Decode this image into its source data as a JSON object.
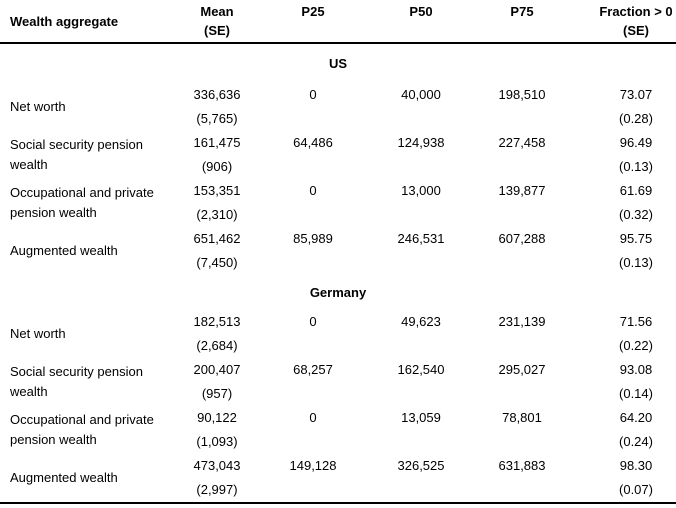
{
  "colors": {
    "background": "#ffffff",
    "text": "#000000",
    "rule": "#000000"
  },
  "table": {
    "header": {
      "wealth_aggregate": "Wealth aggregate",
      "mean": "Mean",
      "mean_se": "(SE)",
      "p25": "P25",
      "p50": "P50",
      "p75": "P75",
      "fraction": "Fraction > 0",
      "fraction_se": "(SE)"
    },
    "sections": [
      {
        "title": "US",
        "rows": [
          {
            "label": "Net worth",
            "mean": "336,636",
            "mean_se": "(5,765)",
            "p25": "0",
            "p50": "40,000",
            "p75": "198,510",
            "fraction": "73.07",
            "fraction_se": "(0.28)"
          },
          {
            "label": "Social security pension wealth",
            "mean": "161,475",
            "mean_se": "(906)",
            "p25": "64,486",
            "p50": "124,938",
            "p75": "227,458",
            "fraction": "96.49",
            "fraction_se": "(0.13)"
          },
          {
            "label": "Occupational and private pension wealth",
            "mean": "153,351",
            "mean_se": "(2,310)",
            "p25": "0",
            "p50": "13,000",
            "p75": "139,877",
            "fraction": "61.69",
            "fraction_se": "(0.32)"
          },
          {
            "label": "Augmented wealth",
            "mean": "651,462",
            "mean_se": "(7,450)",
            "p25": "85,989",
            "p50": "246,531",
            "p75": "607,288",
            "fraction": "95.75",
            "fraction_se": "(0.13)"
          }
        ]
      },
      {
        "title": "Germany",
        "rows": [
          {
            "label": "Net worth",
            "mean": "182,513",
            "mean_se": "(2,684)",
            "p25": "0",
            "p50": "49,623",
            "p75": "231,139",
            "fraction": "71.56",
            "fraction_se": "(0.22)"
          },
          {
            "label": "Social security pension wealth",
            "mean": "200,407",
            "mean_se": "(957)",
            "p25": "68,257",
            "p50": "162,540",
            "p75": "295,027",
            "fraction": "93.08",
            "fraction_se": "(0.14)"
          },
          {
            "label": "Occupational and private pension wealth",
            "mean": "90,122",
            "mean_se": "(1,093)",
            "p25": "0",
            "p50": "13,059",
            "p75": "78,801",
            "fraction": "64.20",
            "fraction_se": "(0.24)"
          },
          {
            "label": "Augmented wealth",
            "mean": "473,043",
            "mean_se": "(2,997)",
            "p25": "149,128",
            "p50": "326,525",
            "p75": "631,883",
            "fraction": "98.30",
            "fraction_se": "(0.07)"
          }
        ]
      }
    ]
  }
}
